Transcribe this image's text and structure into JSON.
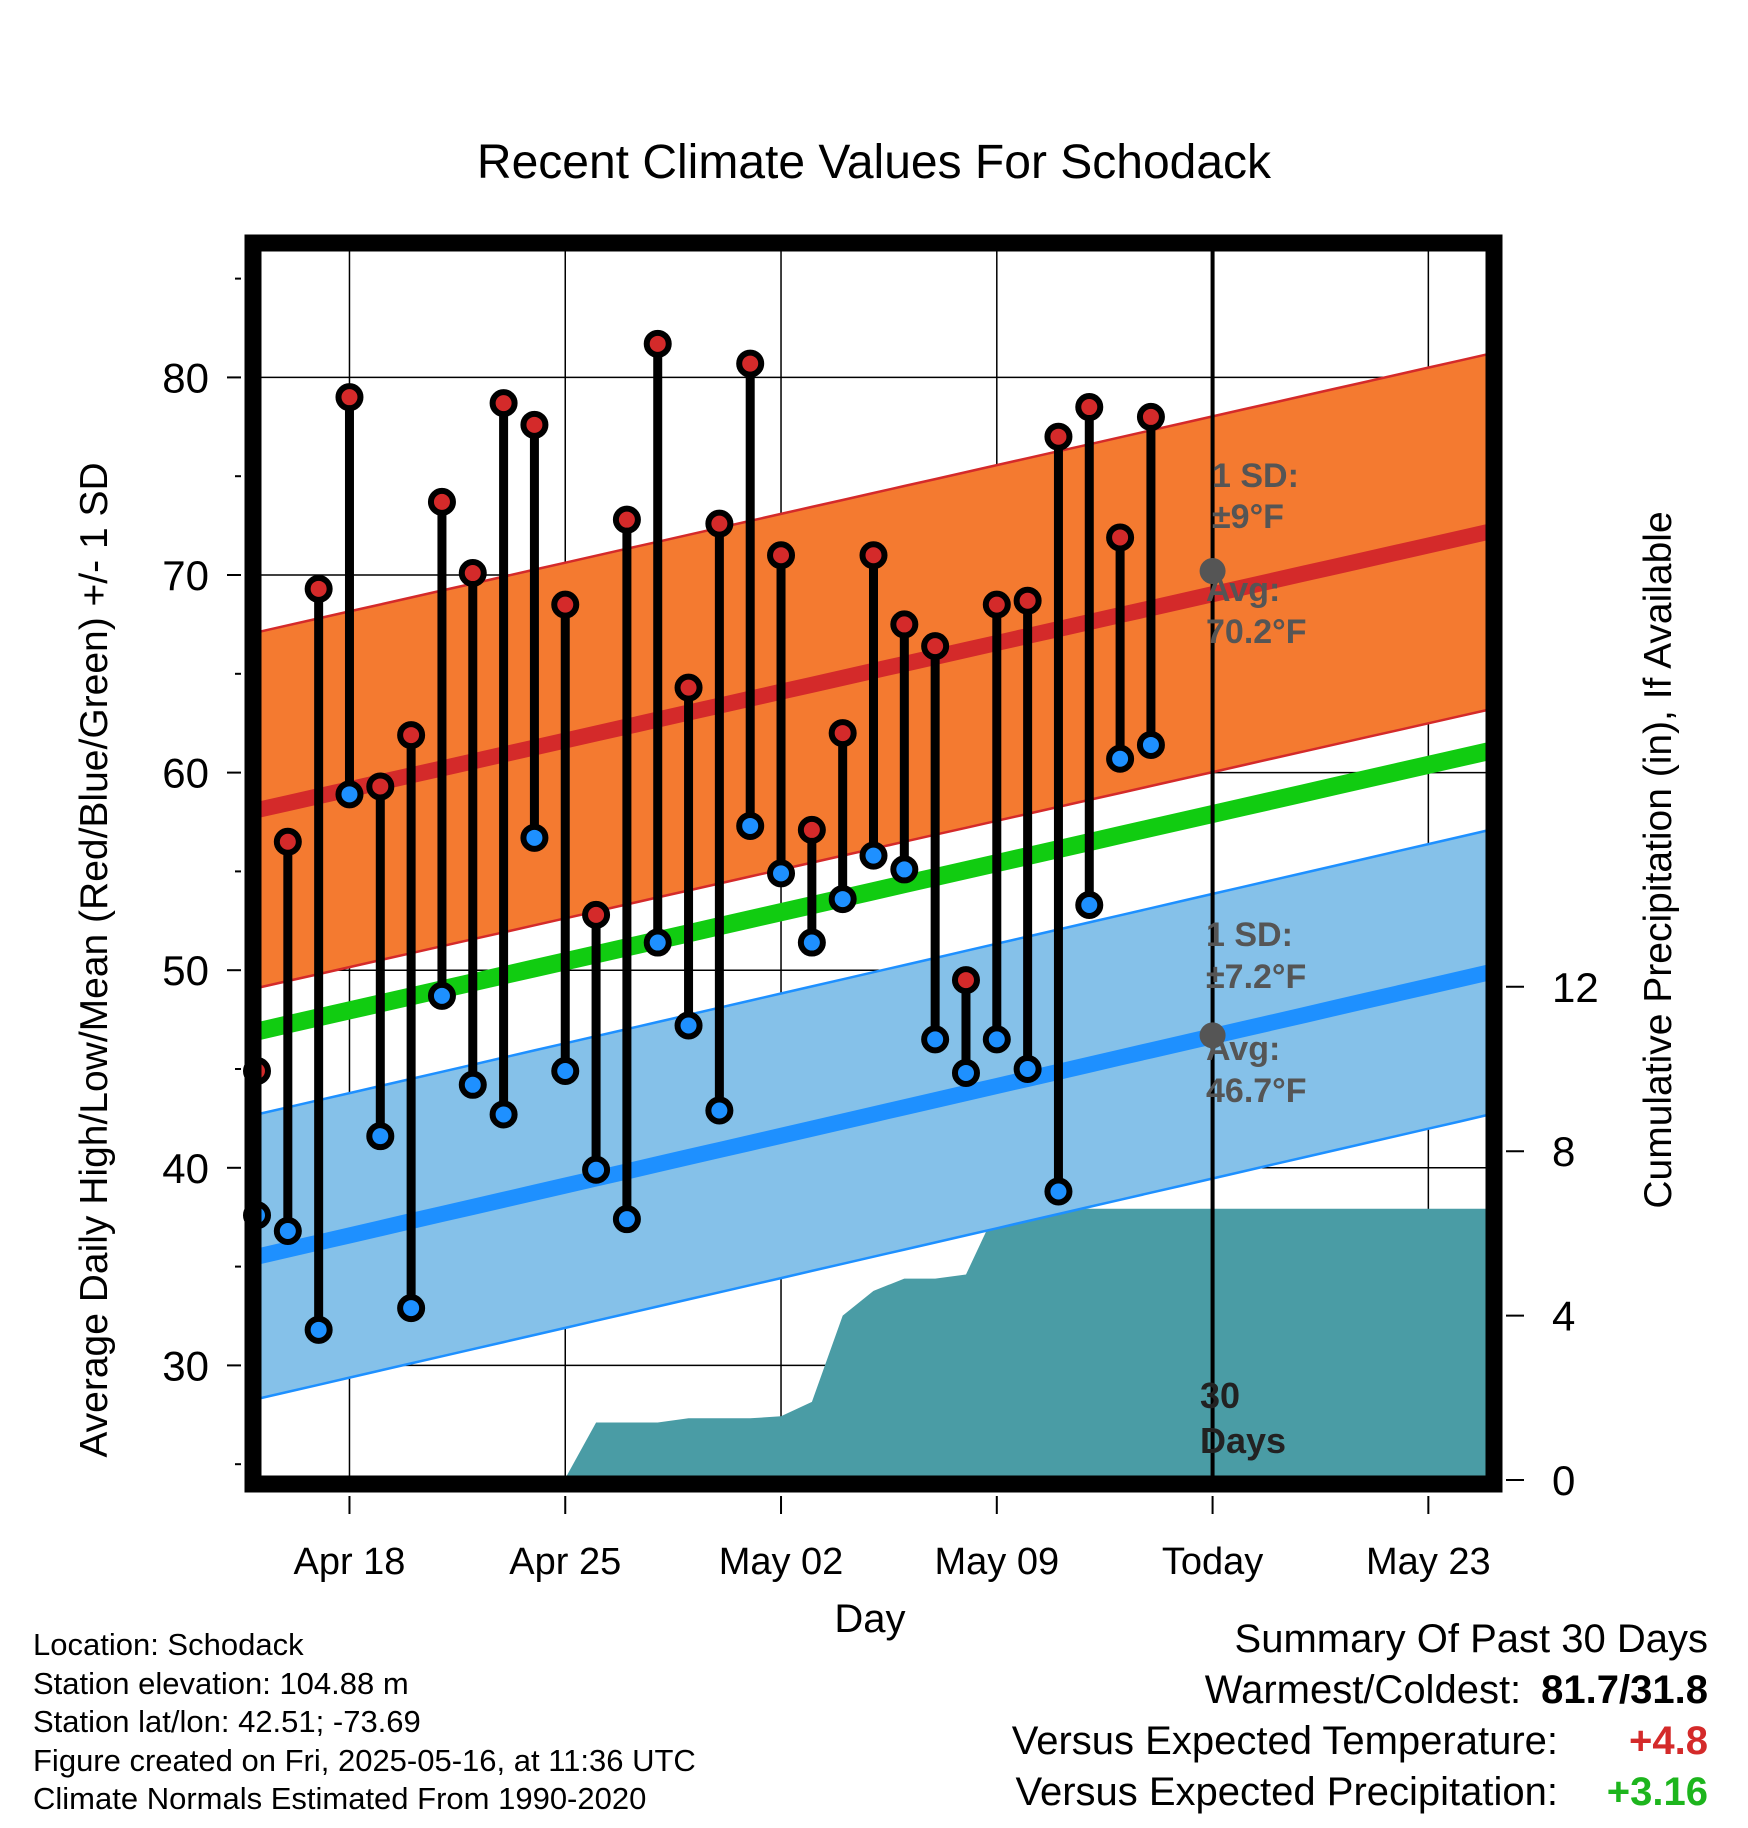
{
  "chart_data": {
    "type": "line",
    "title": "Recent Climate Values For Schodack",
    "xlabel": "Day",
    "ylabel": "Average Daily High/Low/Mean (Red/Blue/Green) +/- 1 SD",
    "y2label": "Cumulative Precipitation (in), If Available",
    "x_ticks": [
      "Apr 18",
      "Apr 25",
      "May 02",
      "May 09",
      "Today",
      "May 23"
    ],
    "y_ticks": [
      30,
      40,
      50,
      60,
      70,
      80
    ],
    "y2_ticks": [
      0,
      4,
      8,
      12
    ],
    "ylim": [
      24.2,
      86.6
    ],
    "y2lim": [
      0,
      30
    ],
    "xlim": [
      "Apr 15",
      "May 25"
    ],
    "grid": true,
    "days": [
      "Apr 15",
      "Apr 16",
      "Apr 17",
      "Apr 18",
      "Apr 19",
      "Apr 20",
      "Apr 21",
      "Apr 22",
      "Apr 23",
      "Apr 24",
      "Apr 25",
      "Apr 26",
      "Apr 27",
      "Apr 28",
      "Apr 29",
      "Apr 30",
      "May 01",
      "May 02",
      "May 03",
      "May 04",
      "May 05",
      "May 06",
      "May 07",
      "May 08",
      "May 09",
      "May 10",
      "May 11",
      "May 12",
      "May 13",
      "May 14",
      "May 15"
    ],
    "daily_high": [
      44.9,
      56.5,
      69.3,
      79.0,
      59.3,
      61.9,
      73.7,
      70.1,
      78.7,
      77.6,
      68.5,
      52.8,
      72.8,
      81.7,
      64.3,
      72.6,
      80.7,
      71.0,
      57.1,
      62.0,
      71.0,
      67.5,
      66.4,
      49.5,
      68.5,
      68.7,
      77.0,
      78.5,
      71.9,
      78.0,
      null
    ],
    "daily_low": [
      37.6,
      36.8,
      31.8,
      58.9,
      41.6,
      32.9,
      48.7,
      44.2,
      42.7,
      56.7,
      44.9,
      39.9,
      37.4,
      51.4,
      47.2,
      42.9,
      57.3,
      54.9,
      51.4,
      53.6,
      55.8,
      55.1,
      46.5,
      44.8,
      46.5,
      45.0,
      38.8,
      53.3,
      60.7,
      61.4,
      null
    ],
    "normal_high": [
      58.1,
      72.2
    ],
    "normal_high_sd": 9,
    "normal_low": [
      35.5,
      49.9
    ],
    "normal_low_sd": 7.2,
    "normal_mean": [
      46.9,
      61.1
    ],
    "cumulative_precip": [
      0,
      0,
      0,
      0,
      0.02,
      0.02,
      0.02,
      0.02,
      0.02,
      0.03,
      0.04,
      1.4,
      1.4,
      1.4,
      1.5,
      1.5,
      1.5,
      1.55,
      1.9,
      4.0,
      4.6,
      4.9,
      4.9,
      5.0,
      6.6,
      6.6,
      6.6,
      6.6,
      6.6,
      6.6,
      6.6
    ],
    "series": [
      {
        "name": "1 SD:",
        "values": [
          9
        ]
      },
      {
        "name": "Avg:",
        "values": [
          70.2
        ]
      },
      {
        "name": "1 SD:",
        "values": [
          7.2
        ]
      },
      {
        "name": "Avg:",
        "values": [
          46.7
        ]
      }
    ],
    "annotations": {
      "high_sd_line1": "1 SD:",
      "high_sd_line2": "±9°F",
      "high_avg_line1": "Avg:",
      "high_avg_line2": "70.2°F",
      "low_sd_line1": "1 SD:",
      "low_sd_line2": "±7.2°F",
      "low_avg_line1": "Avg:",
      "low_avg_line2": "46.7°F",
      "days_line1": "30",
      "days_line2": "Days"
    },
    "colors": {
      "high_band": "#f47a30",
      "high_line": "#d42a2a",
      "low_band": "#85c1e9",
      "low_line": "#1e90ff",
      "mean_line": "#11cc11",
      "precip": "#4a9ca5",
      "marker_high": "#d42a2a",
      "marker_low": "#1e90ff",
      "annotation": "#555555"
    }
  },
  "info": {
    "location": "Location: Schodack",
    "elevation": "Station elevation: 104.88 m",
    "latlon": "Station lat/lon: 42.51; -73.69",
    "created": "Figure created on Fri, 2025-05-16, at 11:36 UTC",
    "normals": "Climate Normals Estimated From 1990-2020"
  },
  "summary": {
    "title": "Summary Of Past 30 Days",
    "warmest_label": "Warmest/Coldest:",
    "warmest_value": "81.7/31.8",
    "temp_label": "Versus Expected Temperature:",
    "temp_value": "+4.8",
    "precip_label": "Versus Expected Precipitation:",
    "precip_value": "+3.16"
  }
}
